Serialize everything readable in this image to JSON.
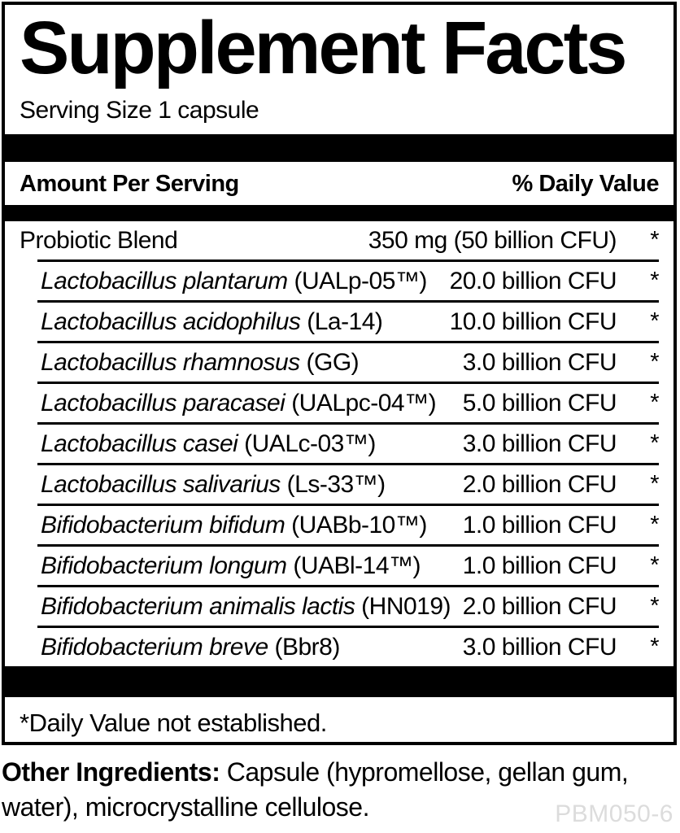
{
  "panel": {
    "title": "Supplement Facts",
    "serving_size": "Serving Size 1 capsule",
    "header": {
      "amount_label": "Amount Per Serving",
      "daily_value_label": "% Daily Value"
    },
    "blend": {
      "name": "Probiotic Blend",
      "amount": "350 mg (50 billion CFU)",
      "daily_value": "*"
    },
    "ingredients": [
      {
        "species": "Lactobacillus plantarum",
        "strain": " (UALp-05™)",
        "amount": "20.0 billion CFU",
        "daily_value": "*"
      },
      {
        "species": "Lactobacillus acidophilus",
        "strain": " (La-14)",
        "amount": "10.0 billion CFU",
        "daily_value": "*"
      },
      {
        "species": "Lactobacillus rhamnosus",
        "strain": " (GG)",
        "amount": "3.0 billion CFU",
        "daily_value": "*"
      },
      {
        "species": "Lactobacillus paracasei",
        "strain": " (UALpc-04™)",
        "amount": "5.0 billion CFU",
        "daily_value": "*"
      },
      {
        "species": "Lactobacillus casei",
        "strain": " (UALc-03™)",
        "amount": "3.0 billion CFU",
        "daily_value": "*"
      },
      {
        "species": "Lactobacillus salivarius",
        "strain": " (Ls-33™)",
        "amount": "2.0 billion CFU",
        "daily_value": "*"
      },
      {
        "species": "Bifidobacterium bifidum",
        "strain": " (UABb-10™)",
        "amount": "1.0 billion CFU",
        "daily_value": "*"
      },
      {
        "species": "Bifidobacterium longum",
        "strain": " (UABl-14™)",
        "amount": "1.0 billion CFU",
        "daily_value": "*"
      },
      {
        "species": "Bifidobacterium animalis lactis",
        "strain": " (HN019)",
        "amount": "2.0 billion CFU",
        "daily_value": "*"
      },
      {
        "species": "Bifidobacterium breve",
        "strain": " (Bbr8)",
        "amount": "3.0 billion CFU",
        "daily_value": "*"
      }
    ],
    "footnote": "*Daily Value not established."
  },
  "other_ingredients": {
    "label": "Other Ingredients:",
    "text": " Capsule (hypromellose, gellan gum, water), microcrystalline cellulose."
  },
  "product_code": "PBM050-6",
  "colors": {
    "text": "#000000",
    "product_code_gray": "#dcdcdc",
    "background": "#ffffff"
  }
}
